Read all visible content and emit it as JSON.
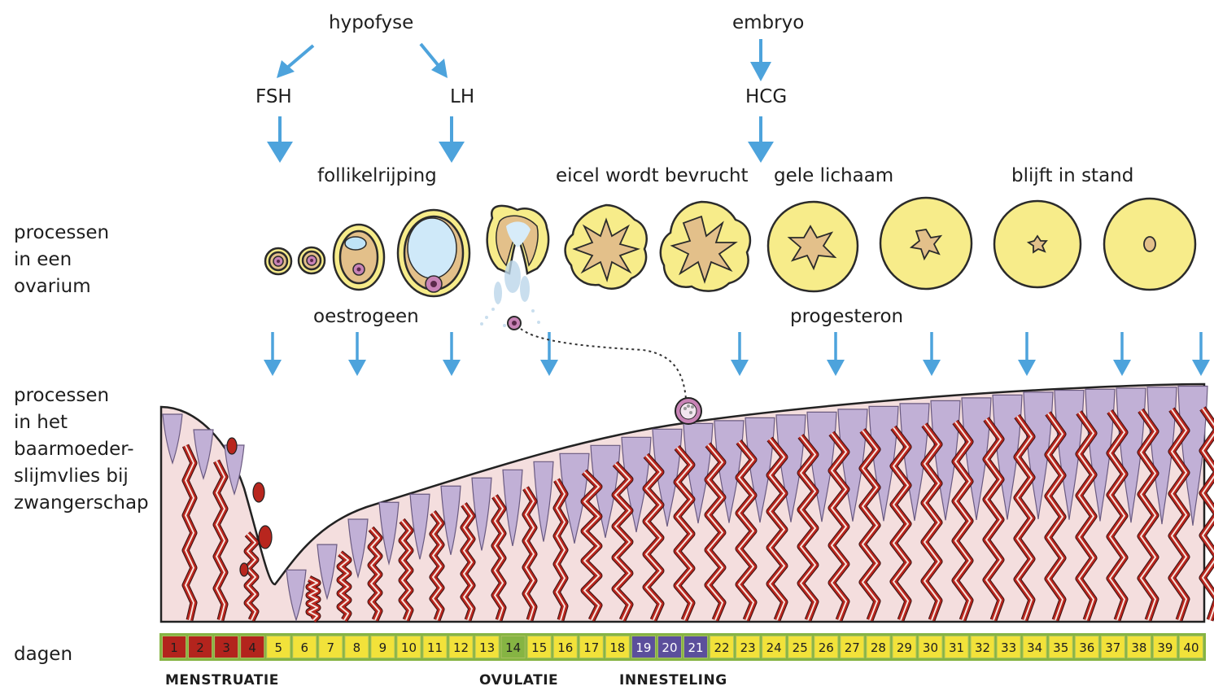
{
  "hormones": {
    "pituitary": "hypofyse",
    "embryo": "embryo",
    "fsh": "FSH",
    "lh": "LH",
    "hcg": "HCG",
    "oestrogen": "oestrogeen",
    "progesterone": "progesteron"
  },
  "stages": {
    "follicle_maturation": "follikelrijping",
    "fertilized": "eicel wordt bevrucht",
    "corpus_luteum": "gele lichaam",
    "persists": "blijft in stand"
  },
  "rows": {
    "ovary": [
      "processen",
      "in een",
      "ovarium"
    ],
    "uterus": [
      "processen",
      "in het",
      "baarmoeder-",
      "slijmvlies bij",
      "zwangerschap"
    ],
    "days": "dagen"
  },
  "phases": {
    "menstruation": "MENSTRUATIE",
    "ovulation": "OVULATIE",
    "implantation": "INNESTELING"
  },
  "days": [
    1,
    2,
    3,
    4,
    5,
    6,
    7,
    8,
    9,
    10,
    11,
    12,
    13,
    14,
    15,
    16,
    17,
    18,
    19,
    20,
    21,
    22,
    23,
    24,
    25,
    26,
    27,
    28,
    29,
    30,
    31,
    32,
    33,
    34,
    35,
    36,
    37,
    38,
    39,
    40
  ],
  "day_colors": {
    "menstruation": "#b3241d",
    "normal": "#f2e23a",
    "ovulation": "#86b443",
    "implantation": "#5b4f9c"
  },
  "colors": {
    "arrow": "#4da3dc",
    "follicle": "#f7ec8a",
    "tissue": "#f4dede",
    "gland": "#c1b0d6",
    "vessel": "#b8261e"
  }
}
